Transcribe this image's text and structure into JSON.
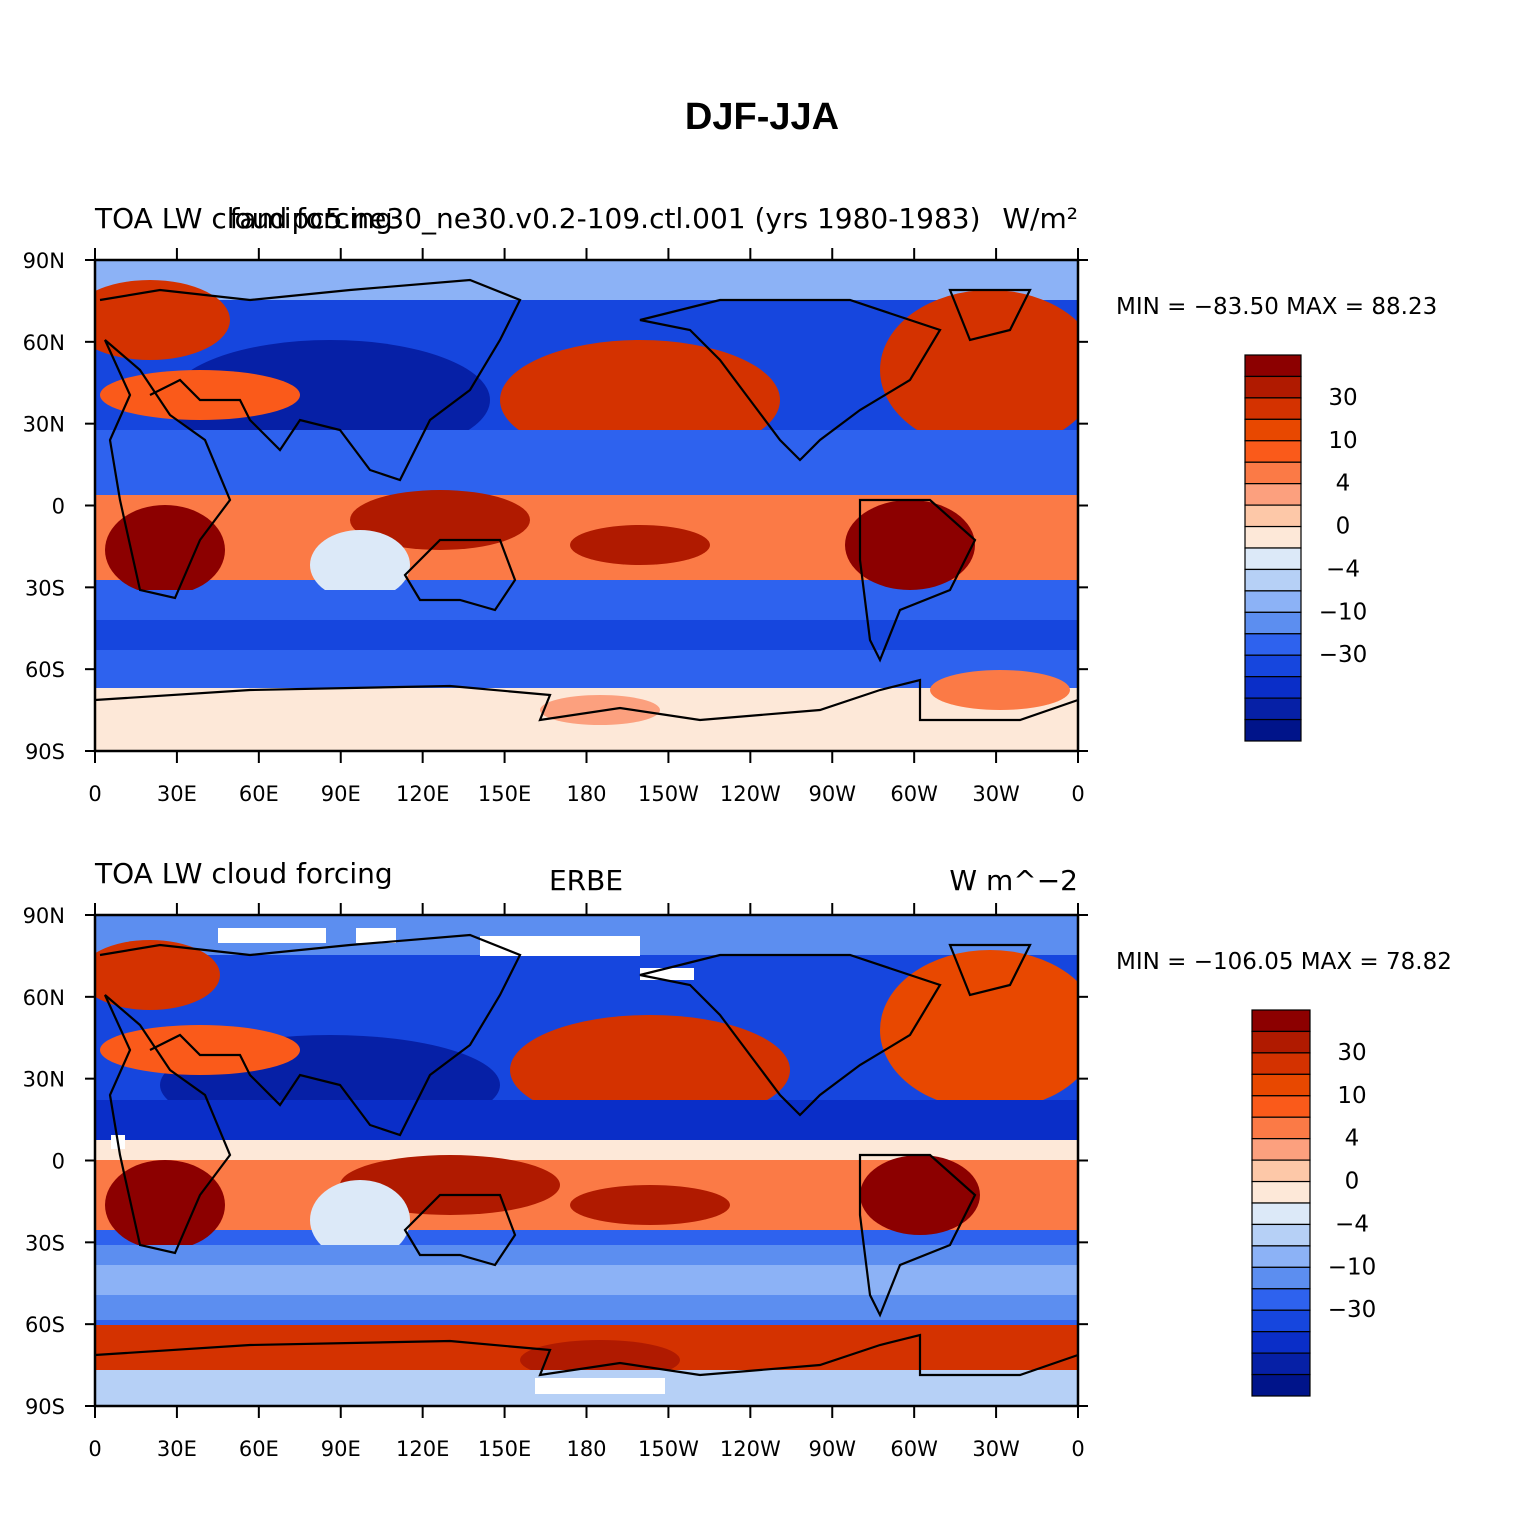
{
  "figure_title": "DJF-JJA",
  "panels": [
    {
      "left_string": "TOA LW cloud forcing",
      "center_string": "famipc5.ne30_ne30.v0.2-109.ctl.001 (yrs 1980-1983)",
      "right_string": "W/m²",
      "min_max_text": "MIN = −83.50  MAX =  88.23"
    },
    {
      "left_string": "TOA LW cloud forcing",
      "center_string": "ERBE",
      "right_string": "W m^−2",
      "min_max_text": "MIN = −106.05  MAX =  78.82"
    }
  ],
  "lat_labels": [
    "90N",
    "60N",
    "30N",
    "0",
    "30S",
    "60S",
    "90S"
  ],
  "lon_labels": [
    "0",
    "30E",
    "60E",
    "90E",
    "120E",
    "150E",
    "180",
    "150W",
    "120W",
    "90W",
    "60W",
    "30W",
    "0"
  ],
  "colorbar": {
    "colors": [
      "#8c0000",
      "#b01a00",
      "#d43200",
      "#e84800",
      "#fa5a1a",
      "#fb7a46",
      "#fca07e",
      "#fdc8a8",
      "#fde8d8",
      "#dce9f8",
      "#b6d0f6",
      "#8cb2f6",
      "#5c8ef0",
      "#2e62ee",
      "#1646de",
      "#0a2ec8",
      "#0620a6",
      "#00148a"
    ],
    "labels": [
      "30",
      "10",
      "4",
      "0",
      "−4",
      "−10",
      "−30"
    ]
  }
}
